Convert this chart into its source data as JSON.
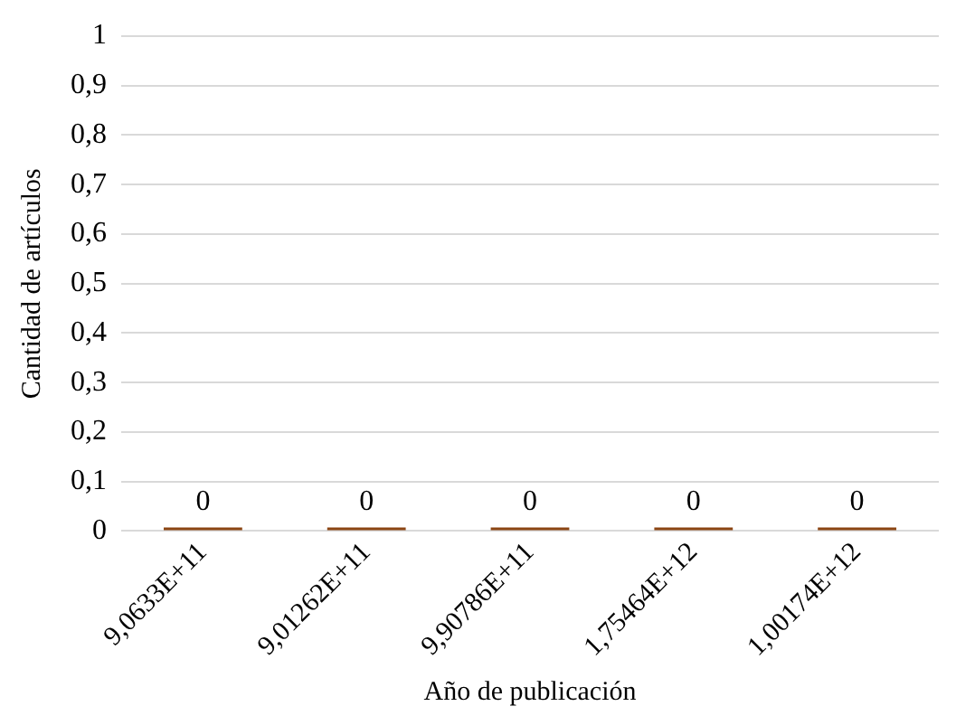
{
  "chart_data": {
    "type": "bar",
    "xlabel": "Año de publicación",
    "ylabel": "Cantidad de artículos",
    "categories": [
      "9,0633E+11",
      "9,01262E+11",
      "9,90786E+11",
      "1,75464E+12",
      "1,00174E+12"
    ],
    "values": [
      0,
      0,
      0,
      0,
      0
    ],
    "color": "#8b4513",
    "ylim": [
      0,
      1
    ],
    "yticks": [
      {
        "value": 0,
        "label": "0"
      },
      {
        "value": 0.1,
        "label": "0,1"
      },
      {
        "value": 0.2,
        "label": "0,2"
      },
      {
        "value": 0.3,
        "label": "0,3"
      },
      {
        "value": 0.4,
        "label": "0,4"
      },
      {
        "value": 0.5,
        "label": "0,5"
      },
      {
        "value": 0.6,
        "label": "0,6"
      },
      {
        "value": 0.7,
        "label": "0,7"
      },
      {
        "value": 0.8,
        "label": "0,8"
      },
      {
        "value": 0.9,
        "label": "0,9"
      },
      {
        "value": 1,
        "label": "1"
      }
    ],
    "grid": "y",
    "data_labels": true,
    "legend": false
  }
}
